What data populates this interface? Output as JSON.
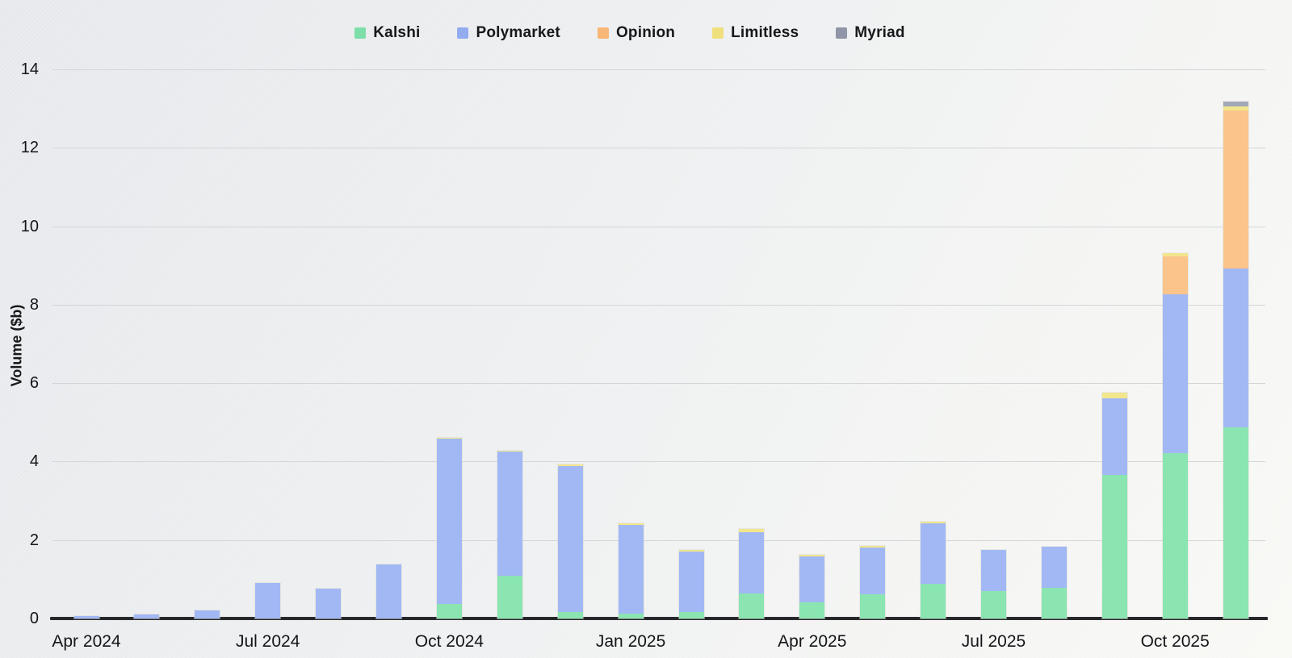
{
  "chart_data": {
    "type": "bar",
    "stacked": true,
    "title": "",
    "xlabel": "",
    "ylabel": "Volume ($b)",
    "ylim": [
      0,
      14
    ],
    "yticks": [
      0,
      2,
      4,
      6,
      8,
      10,
      12,
      14
    ],
    "grid": "horizontal",
    "legend_position": "top-center",
    "categories": [
      "Apr 2024",
      "May 2024",
      "Jun 2024",
      "Jul 2024",
      "Aug 2024",
      "Sep 2024",
      "Oct 2024",
      "Nov 2024",
      "Dec 2024",
      "Jan 2025",
      "Feb 2025",
      "Mar 2025",
      "Apr 2025",
      "May 2025",
      "Jun 2025",
      "Jul 2025",
      "Aug 2025",
      "Sep 2025",
      "Oct 2025",
      "Nov 2025"
    ],
    "x_tick_labels": [
      {
        "index": 0,
        "label": "Apr 2024"
      },
      {
        "index": 3,
        "label": "Jul 2024"
      },
      {
        "index": 6,
        "label": "Oct 2024"
      },
      {
        "index": 9,
        "label": "Jan 2025"
      },
      {
        "index": 12,
        "label": "Apr 2025"
      },
      {
        "index": 15,
        "label": "Jul 2025"
      },
      {
        "index": 18,
        "label": "Oct 2025"
      }
    ],
    "series": [
      {
        "name": "Kalshi",
        "legend_color": "#7ddfa7",
        "color": "#8ae5b1",
        "values": [
          0,
          0,
          0,
          0,
          0,
          0,
          0.37,
          1.08,
          0.17,
          0.13,
          0.17,
          0.63,
          0.42,
          0.61,
          0.88,
          0.69,
          0.79,
          3.66,
          4.22,
          4.88
        ]
      },
      {
        "name": "Polymarket",
        "legend_color": "#93acf0",
        "color": "#a2b8f5",
        "values": [
          0.07,
          0.11,
          0.21,
          0.91,
          0.76,
          1.37,
          4.22,
          3.17,
          3.72,
          2.25,
          1.54,
          1.58,
          1.16,
          1.19,
          1.55,
          1.06,
          1.03,
          1.96,
          4.04,
          4.05
        ]
      },
      {
        "name": "Opinion",
        "legend_color": "#f8b677",
        "color": "#fac48a",
        "values": [
          0,
          0,
          0,
          0,
          0,
          0,
          0,
          0,
          0,
          0,
          0,
          0,
          0,
          0,
          0,
          0,
          0,
          0,
          0.97,
          4.03
        ]
      },
      {
        "name": "Limitless",
        "legend_color": "#efe07d",
        "color": "#f1e68c",
        "values": [
          0,
          0,
          0,
          0,
          0,
          0,
          0.02,
          0.03,
          0.03,
          0.04,
          0.04,
          0.07,
          0.05,
          0.05,
          0.04,
          0,
          0,
          0.14,
          0.08,
          0.1
        ]
      },
      {
        "name": "Myriad",
        "legend_color": "#9095a7",
        "color": "#a3a8b8",
        "values": [
          0,
          0,
          0,
          0,
          0,
          0,
          0,
          0,
          0,
          0,
          0,
          0,
          0,
          0,
          0,
          0,
          0,
          0,
          0,
          0.12
        ]
      }
    ]
  }
}
